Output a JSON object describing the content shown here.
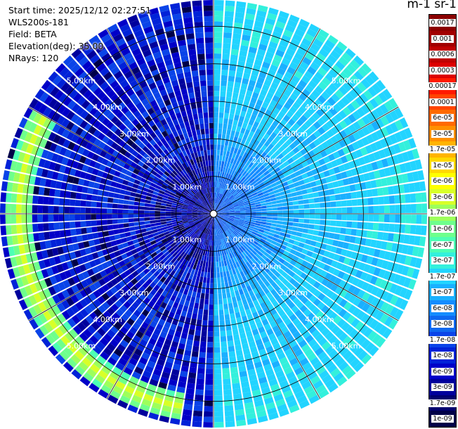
{
  "info": {
    "start_time": "Start time: 2025/12/12 02:27:51",
    "instrument": "WLS200s-181",
    "field": "Field: BETA",
    "elevation": "Elevation(deg): 35.00",
    "nrays": "NRays: 120"
  },
  "colorbar": {
    "units_title": "m-1 sr-1",
    "ticks": [
      "0.0017",
      "0.001",
      "0.0006",
      "0.0003",
      "0.00017",
      "0.0001",
      "6e-05",
      "3e-05",
      "1.7e-05",
      "1e-05",
      "6e-06",
      "3e-06",
      "1.7e-06",
      "1e-06",
      "6e-07",
      "3e-07",
      "1.7e-07",
      "1e-07",
      "6e-08",
      "3e-08",
      "1.7e-08",
      "1e-08",
      "6e-09",
      "3e-09",
      "1.7e-09",
      "1e-09"
    ],
    "colors": [
      "#8b0000",
      "#a10000",
      "#bf0000",
      "#dc0000",
      "#ff1a00",
      "#ff4400",
      "#ff6a00",
      "#ff9000",
      "#ffb400",
      "#ffd800",
      "#ffff00",
      "#d8ff28",
      "#9dff5c",
      "#6eff8c",
      "#4dffb4",
      "#33f0dc",
      "#22d4ff",
      "#1ab0ff",
      "#148cff",
      "#0e68f0",
      "#0a44e8",
      "#0022d8",
      "#0000c8",
      "#00009c",
      "#00006e",
      "#000048"
    ]
  },
  "chart_data": {
    "type": "heatmap",
    "title": "",
    "field": "BETA",
    "units": "m-1 sr-1",
    "elevation_deg": 35.0,
    "n_rays": 120,
    "range_rings_km": [
      1.0,
      2.0,
      3.0,
      4.0,
      5.0
    ],
    "range_ring_labels": [
      "1.00km",
      "2.00km",
      "3.00km",
      "4.00km",
      "5.00km"
    ],
    "max_range_km": 5.7,
    "azimuth_spokes_deg": [
      0,
      30,
      60,
      90,
      120,
      150,
      180,
      210,
      240,
      270,
      300,
      330
    ],
    "scale": "log",
    "colorbar_range": [
      1e-09,
      0.0017
    ],
    "sectors": [
      {
        "azimuth_range_deg": [
          0,
          180
        ],
        "typical_beta": 1e-07,
        "note": "uniform cyan, higher near far range"
      },
      {
        "azimuth_range_deg": [
          180,
          360
        ],
        "typical_beta": 1e-08,
        "note": "blue with dark specks"
      }
    ],
    "features": [
      {
        "azimuth_range_deg": [
          190,
          300
        ],
        "range_km": 5.2,
        "beta": 3e-06,
        "note": "aerosol layer ring"
      }
    ]
  }
}
